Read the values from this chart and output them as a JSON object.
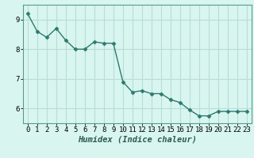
{
  "x": [
    0,
    1,
    2,
    3,
    4,
    5,
    6,
    7,
    8,
    9,
    10,
    11,
    12,
    13,
    14,
    15,
    16,
    17,
    18,
    19,
    20,
    21,
    22,
    23
  ],
  "y": [
    9.2,
    8.6,
    8.4,
    8.7,
    8.3,
    8.0,
    8.0,
    8.25,
    8.2,
    8.2,
    6.9,
    6.55,
    6.6,
    6.5,
    6.5,
    6.3,
    6.2,
    5.95,
    5.75,
    5.75,
    5.9,
    5.9,
    5.9,
    5.9
  ],
  "line_color": "#2d7a6e",
  "marker": "D",
  "marker_size": 2.5,
  "bg_color": "#d8f5f0",
  "grid_color": "#b8ddd6",
  "xlabel": "Humidex (Indice chaleur)",
  "ylim": [
    5.5,
    9.5
  ],
  "xlim": [
    -0.5,
    23.5
  ],
  "yticks": [
    6,
    7,
    8,
    9
  ],
  "xticks": [
    0,
    1,
    2,
    3,
    4,
    5,
    6,
    7,
    8,
    9,
    10,
    11,
    12,
    13,
    14,
    15,
    16,
    17,
    18,
    19,
    20,
    21,
    22,
    23
  ],
  "xlabel_fontsize": 7.5,
  "tick_fontsize": 6.5,
  "line_width": 1.0,
  "spine_color": "#5a9a8a"
}
